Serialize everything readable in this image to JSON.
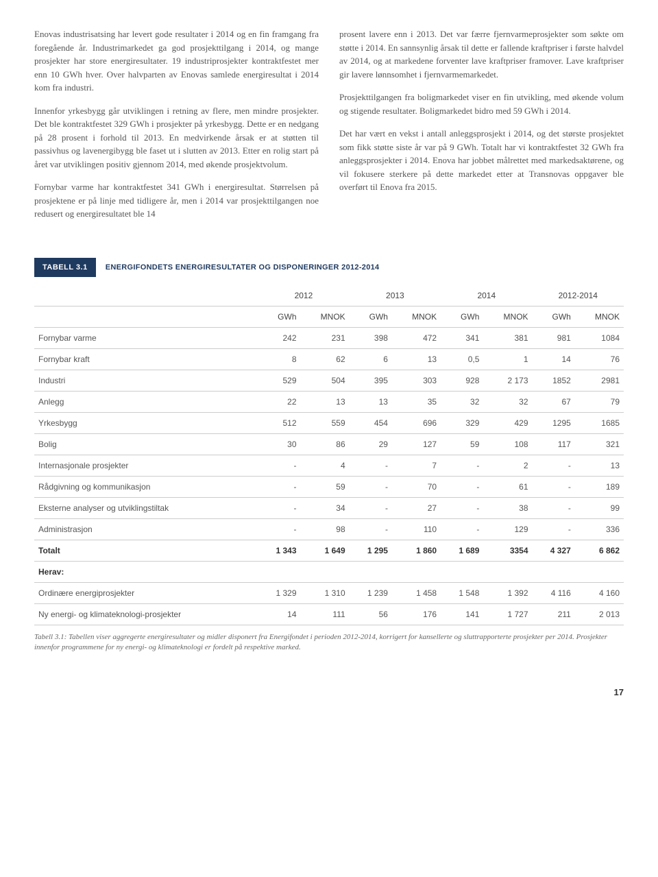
{
  "text": {
    "left": {
      "p1": "Enovas industrisatsing har levert gode resultater i 2014 og en fin framgang fra foregående år. Industrimarkedet ga god prosjekttilgang i 2014, og mange prosjekter har store energiresultater. 19 industriprosjekter kontraktfestet mer enn 10 GWh hver. Over halvparten av Enovas samlede energiresultat i 2014 kom fra industri.",
      "p2": "Innenfor yrkesbygg går utviklingen i retning av flere, men mindre prosjekter. Det ble kontraktfestet 329 GWh i prosjekter på yrkesbygg. Dette er en nedgang på 28 prosent i forhold til 2013. En medvirkende årsak er at støtten til passivhus og lavenergibygg ble faset ut i slutten av 2013. Etter en rolig start på året var utviklingen positiv gjennom 2014, med økende prosjektvolum.",
      "p3": "Fornybar varme har kontraktfestet 341 GWh i energiresultat. Størrelsen på prosjektene er på linje med tidligere år, men i 2014 var prosjekttilgangen noe redusert og energiresultatet ble 14"
    },
    "right": {
      "p1": "prosent lavere enn i 2013. Det var færre fjernvarmeprosjekter som søkte om støtte i 2014. En sannsynlig årsak til dette er fallende kraftpriser i første halvdel av 2014, og at markedene forventer lave kraftpriser framover. Lave kraftpriser gir lavere lønnsomhet i fjernvarmemarkedet.",
      "p2": "Prosjekttilgangen fra boligmarkedet viser en fin utvikling, med økende volum og stigende resultater. Boligmarkedet bidro med 59 GWh i 2014.",
      "p3": "Det har vært en vekst i antall anleggsprosjekt i 2014, og det største prosjektet som fikk støtte siste år var på 9 GWh. Totalt har vi kontraktfestet 32 GWh fra anleggsprosjekter i 2014. Enova har jobbet målrettet med markedsaktørene, og vil fokusere sterkere på dette markedet etter at Transnovas oppgaver ble overført til Enova fra 2015."
    }
  },
  "table": {
    "tag": "TABELL 3.1",
    "title": "ENERGIFONDETS ENERGIRESULTATER OG DISPONERINGER 2012-2014",
    "years": [
      "2012",
      "2013",
      "2014",
      "2012-2014"
    ],
    "units": [
      "GWh",
      "MNOK",
      "GWh",
      "MNOK",
      "GWh",
      "MNOK",
      "GWh",
      "MNOK"
    ],
    "rows": [
      {
        "label": "Fornybar varme",
        "cells": [
          "242",
          "231",
          "398",
          "472",
          "341",
          "381",
          "981",
          "1084"
        ]
      },
      {
        "label": "Fornybar kraft",
        "cells": [
          "8",
          "62",
          "6",
          "13",
          "0,5",
          "1",
          "14",
          "76"
        ]
      },
      {
        "label": "Industri",
        "cells": [
          "529",
          "504",
          "395",
          "303",
          "928",
          "2 173",
          "1852",
          "2981"
        ]
      },
      {
        "label": "Anlegg",
        "cells": [
          "22",
          "13",
          "13",
          "35",
          "32",
          "32",
          "67",
          "79"
        ]
      },
      {
        "label": "Yrkesbygg",
        "cells": [
          "512",
          "559",
          "454",
          "696",
          "329",
          "429",
          "1295",
          "1685"
        ]
      },
      {
        "label": "Bolig",
        "cells": [
          "30",
          "86",
          "29",
          "127",
          "59",
          "108",
          "117",
          "321"
        ]
      },
      {
        "label": "Internasjonale prosjekter",
        "cells": [
          "-",
          "4",
          "-",
          "7",
          "-",
          "2",
          "-",
          "13"
        ]
      },
      {
        "label": "Rådgivning og kommunikasjon",
        "cells": [
          "-",
          "59",
          "-",
          "70",
          "-",
          "61",
          "-",
          "189"
        ]
      },
      {
        "label": "Eksterne analyser og utviklingstiltak",
        "cells": [
          "-",
          "34",
          "-",
          "27",
          "-",
          "38",
          "-",
          "99"
        ]
      },
      {
        "label": "Administrasjon",
        "cells": [
          "-",
          "98",
          "-",
          "110",
          "-",
          "129",
          "-",
          "336"
        ]
      }
    ],
    "total": {
      "label": "Totalt",
      "cells": [
        "1 343",
        "1 649",
        "1 295",
        "1 860",
        "1 689",
        "3354",
        "4 327",
        "6 862"
      ]
    },
    "herav": "Herav:",
    "subrows": [
      {
        "label": "Ordinære energiprosjekter",
        "cells": [
          "1 329",
          "1 310",
          "1 239",
          "1 458",
          "1 548",
          "1 392",
          "4 116",
          "4 160"
        ]
      },
      {
        "label": "Ny energi- og klimateknologi-prosjekter",
        "cells": [
          "14",
          "111",
          "56",
          "176",
          "141",
          "1 727",
          "211",
          "2 013"
        ]
      }
    ],
    "caption": "Tabell 3.1: Tabellen viser aggregerte energiresultater og midler disponert fra Energifondet i  perioden 2012-2014, korrigert for kansellerte og sluttrapporterte prosjekter per 2014. Prosjekter innenfor programmene for ny energi- og klimateknologi er fordelt på respektive marked."
  },
  "page_number": "17"
}
